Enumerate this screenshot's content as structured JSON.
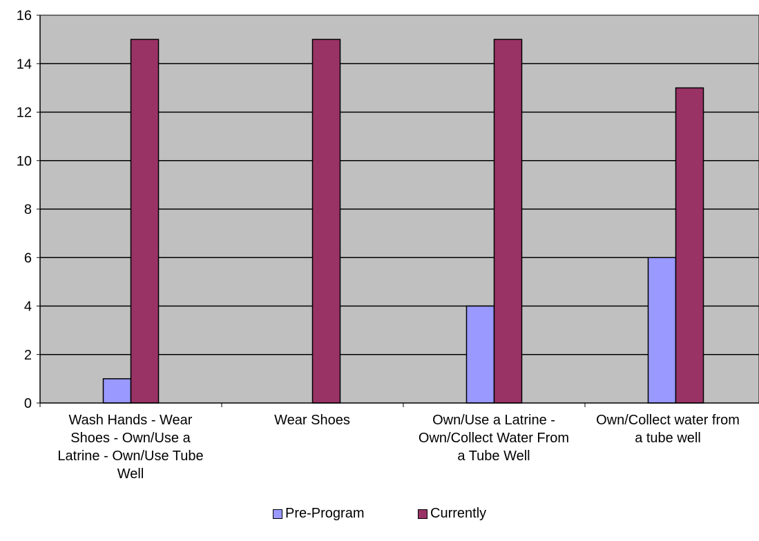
{
  "chart_data": {
    "type": "bar",
    "categories": [
      "Wash Hands - Wear\nShoes - Own/Use a\nLatrine - Own/Use Tube\nWell",
      "Wear Shoes",
      "Own/Use a Latrine -\nOwn/Collect Water From\na Tube Well",
      "Own/Collect water from\na tube well"
    ],
    "series": [
      {
        "name": "Pre-Program",
        "values": [
          1,
          0,
          4,
          6
        ],
        "color": "#9999ff"
      },
      {
        "name": "Currently",
        "values": [
          15,
          15,
          15,
          13
        ],
        "color": "#993366"
      }
    ],
    "ylim": [
      0,
      16
    ],
    "yticks": [
      "0",
      "2",
      "4",
      "6",
      "8",
      "10",
      "12",
      "14",
      "16"
    ],
    "grid": true,
    "plot_background": "#c0c0c0",
    "legend_position": "bottom"
  }
}
